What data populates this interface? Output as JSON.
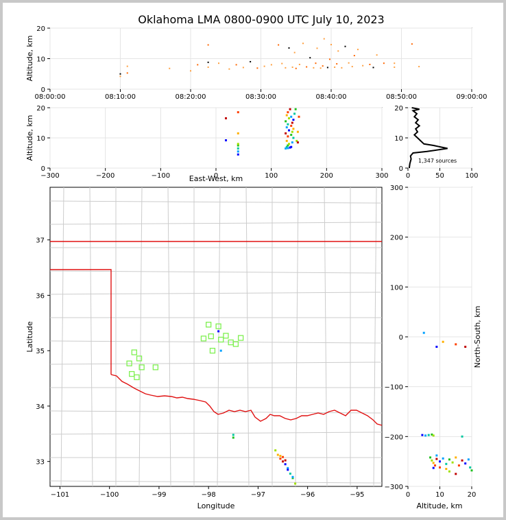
{
  "chart_data": [
    {
      "id": "time_height",
      "type": "scatter",
      "title": "Oklahoma LMA 0800-0900 UTC July 10, 2023",
      "ylabel": "Altitude, km",
      "xlabel": "",
      "x_ticks": [
        "08:00:00",
        "08:10:00",
        "08:20:00",
        "08:30:00",
        "08:40:00",
        "08:50:00",
        "09:00:00"
      ],
      "x_range_min": [
        0,
        60
      ],
      "ylim": [
        0,
        20
      ],
      "y_ticks": [
        0,
        10,
        20
      ],
      "points_min_alt": [
        [
          10.0,
          5.0
        ],
        [
          10.0,
          4.2
        ],
        [
          11.0,
          7.5
        ],
        [
          11.0,
          5.3
        ],
        [
          17.0,
          6.8
        ],
        [
          20.0,
          6.0
        ],
        [
          21.0,
          8.0
        ],
        [
          22.5,
          8.8
        ],
        [
          22.5,
          7.2
        ],
        [
          22.5,
          14.5
        ],
        [
          24.0,
          8.5
        ],
        [
          25.5,
          6.6
        ],
        [
          26.5,
          8.0
        ],
        [
          27.5,
          7.1
        ],
        [
          28.5,
          9.0
        ],
        [
          29.5,
          6.9
        ],
        [
          30.5,
          7.5
        ],
        [
          31.5,
          8.0
        ],
        [
          32.5,
          14.5
        ],
        [
          33.0,
          8.4
        ],
        [
          33.5,
          7.0
        ],
        [
          34.0,
          13.5
        ],
        [
          34.5,
          7.2
        ],
        [
          34.8,
          12.0
        ],
        [
          35.0,
          6.8
        ],
        [
          35.5,
          8.1
        ],
        [
          36.0,
          15.0
        ],
        [
          36.5,
          7.3
        ],
        [
          37.0,
          10.3
        ],
        [
          37.5,
          7.0
        ],
        [
          37.8,
          8.5
        ],
        [
          38.0,
          13.4
        ],
        [
          38.5,
          6.9
        ],
        [
          38.8,
          7.6
        ],
        [
          39.0,
          16.5
        ],
        [
          39.5,
          7.1
        ],
        [
          39.8,
          9.8
        ],
        [
          40.0,
          14.6
        ],
        [
          40.5,
          7.2
        ],
        [
          40.8,
          8.3
        ],
        [
          41.0,
          12.5
        ],
        [
          41.5,
          7.0
        ],
        [
          42.0,
          14.0
        ],
        [
          42.5,
          8.6
        ],
        [
          43.0,
          7.4
        ],
        [
          43.3,
          11.0
        ],
        [
          43.8,
          13.0
        ],
        [
          44.5,
          7.7
        ],
        [
          45.5,
          8.1
        ],
        [
          46.0,
          7.1
        ],
        [
          46.5,
          11.2
        ],
        [
          47.5,
          8.5
        ],
        [
          49.0,
          8.5
        ],
        [
          49.0,
          7.2
        ],
        [
          51.5,
          14.8
        ],
        [
          52.5,
          7.4
        ]
      ]
    },
    {
      "id": "ew_height",
      "type": "scatter",
      "xlabel": "East-West, km",
      "ylabel": "Altitude, km",
      "xlim": [
        -300,
        300
      ],
      "x_ticks": [
        -300,
        -200,
        -100,
        0,
        100,
        200,
        300
      ],
      "ylim": [
        0,
        20
      ],
      "y_ticks": [
        0,
        10,
        20
      ],
      "points_km": [
        [
          40,
          4.5
        ],
        [
          40,
          5.5
        ],
        [
          40,
          6.5
        ],
        [
          40,
          7.5
        ],
        [
          40,
          8.0
        ],
        [
          40,
          11.5
        ],
        [
          40,
          18.5
        ],
        [
          18,
          16.5
        ],
        [
          18,
          9.2
        ],
        [
          126,
          6.5
        ],
        [
          128,
          7.0
        ],
        [
          130,
          7.5
        ],
        [
          132,
          8.0
        ],
        [
          128,
          9.0
        ],
        [
          130,
          10.5
        ],
        [
          126,
          11.5
        ],
        [
          132,
          12.5
        ],
        [
          128,
          13.5
        ],
        [
          130,
          14.5
        ],
        [
          126,
          15.5
        ],
        [
          132,
          16.5
        ],
        [
          128,
          17.5
        ],
        [
          130,
          18.5
        ],
        [
          134,
          19.5
        ],
        [
          136,
          7.0
        ],
        [
          138,
          8.5
        ],
        [
          140,
          10.0
        ],
        [
          136,
          11.0
        ],
        [
          138,
          12.0
        ],
        [
          140,
          13.0
        ],
        [
          136,
          14.0
        ],
        [
          138,
          15.0
        ],
        [
          140,
          16.0
        ],
        [
          136,
          17.0
        ],
        [
          142,
          18.0
        ],
        [
          144,
          19.5
        ],
        [
          146,
          9.0
        ],
        [
          148,
          12.0
        ],
        [
          150,
          17.0
        ],
        [
          148,
          8.5
        ],
        [
          134,
          6.8
        ],
        [
          130,
          6.6
        ]
      ]
    },
    {
      "id": "alt_histogram",
      "type": "line",
      "xlim": [
        0,
        100
      ],
      "x_ticks": [
        0,
        50,
        100
      ],
      "ylim": [
        0,
        20
      ],
      "y_ticks": [
        0,
        10,
        20
      ],
      "annotation": "1,347 sources",
      "profile": [
        [
          2,
          0
        ],
        [
          3,
          1.5
        ],
        [
          5,
          3
        ],
        [
          4,
          4
        ],
        [
          8,
          5
        ],
        [
          30,
          5.5
        ],
        [
          62,
          6.5
        ],
        [
          40,
          7.5
        ],
        [
          25,
          8
        ],
        [
          20,
          9
        ],
        [
          15,
          10
        ],
        [
          10,
          11
        ],
        [
          15,
          12
        ],
        [
          12,
          13
        ],
        [
          18,
          14
        ],
        [
          12,
          15
        ],
        [
          16,
          16
        ],
        [
          10,
          17
        ],
        [
          14,
          18
        ],
        [
          8,
          19
        ],
        [
          18,
          19.5
        ],
        [
          6,
          20
        ]
      ]
    },
    {
      "id": "plan_view",
      "type": "map",
      "xlabel": "Longitude",
      "ylabel": "Latitude",
      "xlim": [
        -101.2,
        -94.5
      ],
      "ylim": [
        32.55,
        37.95
      ],
      "x_ticks": [
        -101,
        -100,
        -99,
        -98,
        -97,
        -96,
        -95
      ],
      "y_ticks": [
        33,
        34,
        35,
        36,
        37
      ],
      "stations": [
        [
          -99.6,
          34.77
        ],
        [
          -99.5,
          34.97
        ],
        [
          -99.4,
          34.86
        ],
        [
          -99.35,
          34.7
        ],
        [
          -99.55,
          34.58
        ],
        [
          -99.45,
          34.52
        ],
        [
          -99.07,
          34.7
        ],
        [
          -98.1,
          35.22
        ],
        [
          -98.0,
          35.47
        ],
        [
          -97.95,
          35.26
        ],
        [
          -97.92,
          35.0
        ],
        [
          -97.8,
          35.44
        ],
        [
          -97.75,
          35.2
        ],
        [
          -97.65,
          35.27
        ],
        [
          -97.55,
          35.15
        ],
        [
          -97.45,
          35.12
        ],
        [
          -97.35,
          35.23
        ]
      ],
      "sources": [
        [
          -97.8,
          35.35
        ],
        [
          -97.75,
          35.0
        ],
        [
          -97.5,
          33.48
        ],
        [
          -97.5,
          33.43
        ],
        [
          -96.65,
          33.2
        ],
        [
          -96.6,
          33.12
        ],
        [
          -96.55,
          33.05
        ],
        [
          -96.5,
          33.0
        ],
        [
          -96.45,
          32.95
        ],
        [
          -96.4,
          32.88
        ],
        [
          -96.35,
          32.78
        ],
        [
          -96.3,
          32.7
        ],
        [
          -96.25,
          32.6
        ],
        [
          -96.55,
          33.1
        ],
        [
          -96.5,
          33.08
        ],
        [
          -96.45,
          33.02
        ],
        [
          -96.4,
          32.85
        ],
        [
          -96.3,
          32.72
        ]
      ]
    },
    {
      "id": "height_ns",
      "type": "scatter",
      "xlabel": "Altitude, km",
      "ylabel": "North-South, km",
      "xlim": [
        0,
        20
      ],
      "x_ticks": [
        0,
        10,
        20
      ],
      "ylim": [
        -300,
        300
      ],
      "y_ticks": [
        -300,
        -200,
        -100,
        0,
        100,
        200,
        300
      ],
      "points_km": [
        [
          4.5,
          -197
        ],
        [
          5.5,
          -198
        ],
        [
          6.5,
          -197
        ],
        [
          7.5,
          -196
        ],
        [
          8,
          -198
        ],
        [
          11,
          -10
        ],
        [
          15,
          -15
        ],
        [
          18,
          -20
        ],
        [
          9,
          -20
        ],
        [
          5,
          8
        ],
        [
          17,
          -200
        ],
        [
          7,
          -242
        ],
        [
          7.5,
          -248
        ],
        [
          8,
          -253
        ],
        [
          8.5,
          -258
        ],
        [
          9,
          -245
        ],
        [
          10,
          -250
        ],
        [
          11,
          -244
        ],
        [
          12,
          -255
        ],
        [
          13,
          -246
        ],
        [
          14,
          -252
        ],
        [
          15,
          -242
        ],
        [
          16,
          -258
        ],
        [
          17,
          -248
        ],
        [
          18,
          -254
        ],
        [
          19,
          -246
        ],
        [
          19.5,
          -262
        ],
        [
          20,
          -268
        ],
        [
          13,
          -270
        ],
        [
          12,
          -265
        ],
        [
          10,
          -262
        ],
        [
          15,
          -275
        ],
        [
          8,
          -263
        ],
        [
          9,
          -238
        ]
      ]
    }
  ],
  "colors": {
    "state_border": "#e01010",
    "county_lines": "#c8c8c8",
    "station": "#7ef050",
    "frame": "#c8c8c8",
    "time_point": "#ff9933"
  }
}
